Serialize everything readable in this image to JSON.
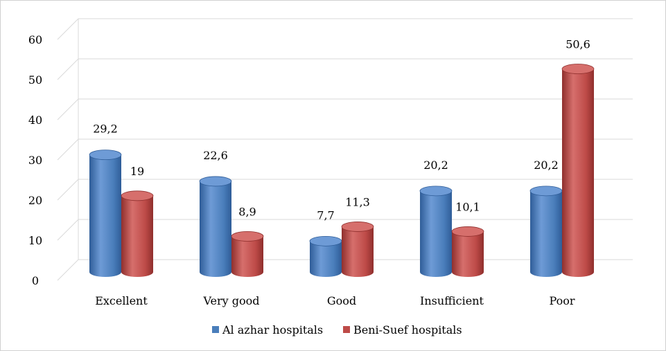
{
  "chart_data": {
    "type": "bar",
    "categories": [
      "Excellent",
      "Very good",
      "Good",
      "Insufficient",
      "Poor"
    ],
    "series": [
      {
        "name": "Al azhar hospitals",
        "values": [
          29.2,
          22.6,
          7.7,
          20.2,
          20.2
        ],
        "labels": [
          "29,2",
          "22,6",
          "7,7",
          "20,2",
          "20,2"
        ],
        "color": "#4a7ebb",
        "color_light": "#6e9bd6",
        "color_dark": "#2f5d98"
      },
      {
        "name": "Beni-Suef hospitals",
        "values": [
          19,
          8.9,
          11.3,
          10.1,
          50.6
        ],
        "labels": [
          "19",
          "8,9",
          "11,3",
          "10,1",
          "50,6"
        ],
        "color": "#be4b48",
        "color_light": "#d66f6c",
        "color_dark": "#8f2f2d"
      }
    ],
    "ylim": [
      0,
      60
    ],
    "yticks": [
      "0",
      "10",
      "20",
      "30",
      "40",
      "50",
      "60"
    ],
    "grid": true,
    "style": "3d-cylinder",
    "legend_position": "bottom",
    "title": "",
    "xlabel": "",
    "ylabel": ""
  }
}
